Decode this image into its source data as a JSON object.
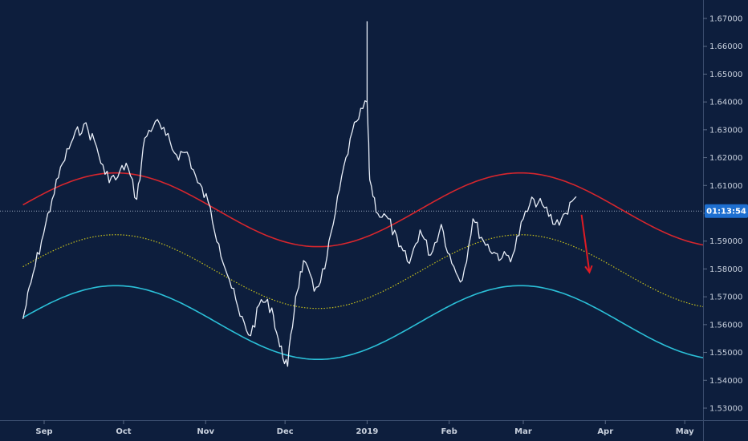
{
  "chart_data": {
    "type": "line",
    "grid": false,
    "background": "#0d1e3d",
    "y_axis": {
      "position": "right",
      "ylim": [
        1.5262,
        1.6782
      ],
      "ticks": [
        "1.53000",
        "1.54000",
        "1.55000",
        "1.56000",
        "1.57000",
        "1.58000",
        "1.59000",
        "1.60000",
        "1.61000",
        "1.62000",
        "1.63000",
        "1.64000",
        "1.65000",
        "1.66000",
        "1.67000"
      ]
    },
    "x_axis": {
      "ticks": [
        "Sep",
        "Oct",
        "Nov",
        "Dec",
        "2019",
        "Feb",
        "Mar",
        "Apr",
        "May"
      ]
    },
    "current_price": 1.6008,
    "countdown": "01:13:54",
    "series": [
      {
        "kind": "price",
        "color": "#e8eef8",
        "x": [
          "Aug 24",
          "Aug 27",
          "Aug 31",
          "Sep 4",
          "Sep 8",
          "Sep 12",
          "Sep 16",
          "Sep 20",
          "Sep 24",
          "Sep 28",
          "Oct 2",
          "Oct 6",
          "Oct 9",
          "Oct 13",
          "Oct 17",
          "Oct 21",
          "Oct 25",
          "Oct 29",
          "Nov 2",
          "Nov 6",
          "Nov 10",
          "Nov 14",
          "Nov 18",
          "Nov 22",
          "Nov 26",
          "Nov 29",
          "Dec 2",
          "Dec 5",
          "Dec 8",
          "Dec 12",
          "Dec 16",
          "Dec 20",
          "Dec 24",
          "Dec 28",
          "Jan 1",
          "Jan 2",
          "Jan 5",
          "Jan 9",
          "Jan 13",
          "Jan 17",
          "Jan 21",
          "Jan 25",
          "Jan 29",
          "Feb 2",
          "Feb 6",
          "Feb 10",
          "Feb 14",
          "Feb 18",
          "Feb 21",
          "Feb 25",
          "Mar 1",
          "Mar 5",
          "Mar 9",
          "Mar 13",
          "Mar 17",
          "Mar 21"
        ],
        "y": [
          1.562,
          1.575,
          1.59,
          1.605,
          1.618,
          1.627,
          1.632,
          1.626,
          1.614,
          1.612,
          1.618,
          1.605,
          1.627,
          1.633,
          1.628,
          1.621,
          1.622,
          1.611,
          1.604,
          1.589,
          1.576,
          1.563,
          1.556,
          1.569,
          1.566,
          1.552,
          1.545,
          1.57,
          1.583,
          1.572,
          1.58,
          1.6,
          1.62,
          1.633,
          1.64,
          1.612,
          1.6,
          1.598,
          1.588,
          1.582,
          1.594,
          1.585,
          1.596,
          1.582,
          1.576,
          1.598,
          1.59,
          1.586,
          1.584,
          1.585,
          1.598,
          1.605,
          1.602,
          1.596,
          1.6,
          1.606
        ],
        "spike": {
          "x": "Jan 1",
          "high": 1.669
        }
      },
      {
        "kind": "upper-cycle",
        "color": "#d7262d",
        "x": [
          "Aug 24",
          "Sep 28",
          "Nov 25",
          "Jan 20",
          "Feb 28",
          "May 8"
        ],
        "y": [
          1.5964,
          1.6145,
          1.588,
          1.6062,
          1.6145,
          1.588
        ],
        "note": "sinusoid; peaks Sep 28 and Feb 28, trough Nov 25"
      },
      {
        "kind": "middle-cycle",
        "color": "#c8c21c",
        "style": "dotted",
        "x": [
          "Aug 24",
          "Sep 28",
          "Nov 25",
          "Jan 20",
          "Feb 28",
          "May 8"
        ],
        "y": [
          1.5775,
          1.5923,
          1.5658,
          1.584,
          1.5923,
          1.5658
        ],
        "note": "sinusoid; peaks Sep 28 and Feb 28, trough Nov 25"
      },
      {
        "kind": "lower-cycle",
        "color": "#2bc0d8",
        "x": [
          "Aug 24",
          "Sep 28",
          "Nov 25",
          "Jan 20",
          "Feb 28",
          "May 8"
        ],
        "y": [
          1.559,
          1.574,
          1.5475,
          1.5655,
          1.574,
          1.5475
        ],
        "note": "sinusoid; peaks Sep 28 and Feb 28, trough Nov 25"
      }
    ],
    "annotations": [
      {
        "type": "arrow",
        "color": "#e01b24",
        "from": {
          "x": "Mar 23",
          "y": 1.5995
        },
        "to": {
          "x": "Mar 26",
          "y": 1.5788
        }
      }
    ]
  }
}
